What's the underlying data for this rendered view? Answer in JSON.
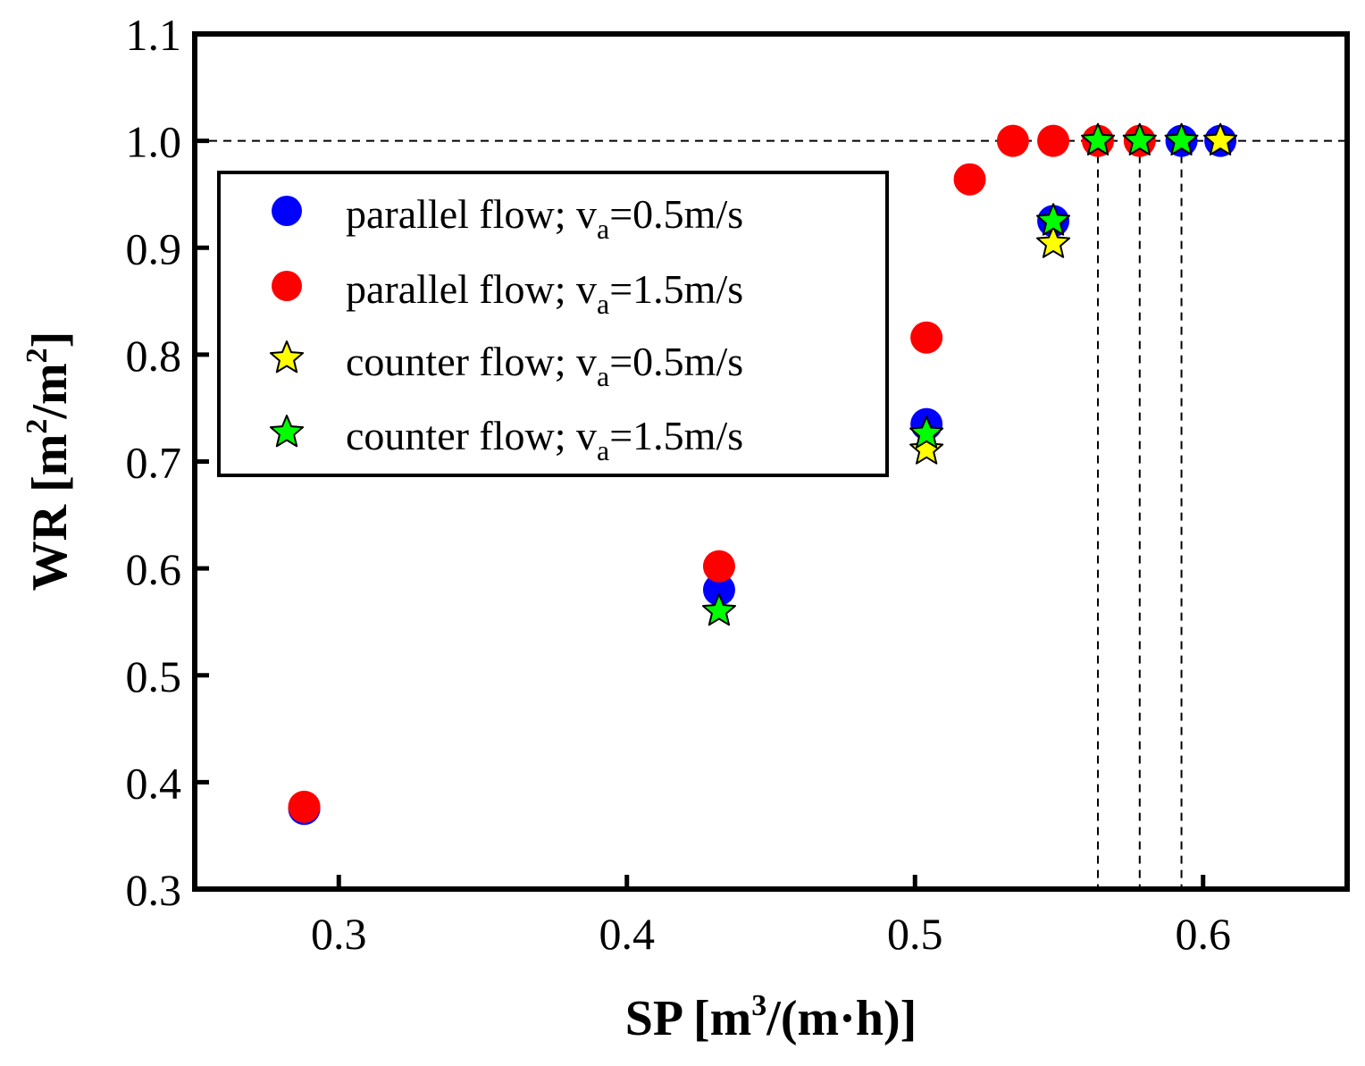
{
  "chart_data": {
    "type": "scatter",
    "title": "",
    "xlabel": "SP [m3/(m·h)]",
    "ylabel": "WR [m2/m2]",
    "xlim": [
      0.25,
      0.65
    ],
    "ylim": [
      0.3,
      1.1
    ],
    "x_ticks": [
      0.3,
      0.4,
      0.5,
      0.6
    ],
    "x_tick_labels": [
      "0.3",
      "0.4",
      "0.5",
      "0.6"
    ],
    "y_ticks": [
      0.3,
      0.4,
      0.5,
      0.6,
      0.7,
      0.8,
      0.9,
      1.0,
      1.1
    ],
    "y_tick_labels": [
      "0.3",
      "0.4",
      "0.5",
      "0.6",
      "0.7",
      "0.8",
      "0.9",
      "1.0",
      "1.1"
    ],
    "grid": false,
    "legend_position": "upper-left",
    "reference_lines": {
      "horizontal_y": 1.0,
      "vertical_x": [
        0.5635,
        0.578,
        0.5925
      ]
    },
    "series": [
      {
        "name": "parallel flow; va=0.5m/s",
        "marker": "circle",
        "color": "#0000ff",
        "x": [
          0.288,
          0.432,
          0.504,
          0.548,
          0.5925,
          0.606
        ],
        "y": [
          0.375,
          0.58,
          0.735,
          0.925,
          1.0,
          1.0
        ]
      },
      {
        "name": "parallel flow; va=1.5m/s",
        "marker": "circle",
        "color": "#ff0000",
        "x": [
          0.288,
          0.432,
          0.504,
          0.519,
          0.534,
          0.548,
          0.5635,
          0.578
        ],
        "y": [
          0.377,
          0.602,
          0.816,
          0.964,
          1.0,
          1.0,
          1.0,
          1.0
        ]
      },
      {
        "name": "counter flow; va=0.5m/s",
        "marker": "star",
        "color": "#ffff00",
        "x": [
          0.504,
          0.548,
          0.606
        ],
        "y": [
          0.711,
          0.904,
          1.0
        ]
      },
      {
        "name": "counter flow; va=1.5m/s",
        "marker": "star",
        "color": "#00ff00",
        "x": [
          0.432,
          0.504,
          0.548,
          0.5635,
          0.578,
          0.5925
        ],
        "y": [
          0.56,
          0.726,
          0.925,
          1.0,
          1.0,
          1.0
        ]
      }
    ]
  },
  "legend": {
    "items": [
      {
        "label_prefix": "parallel flow; v",
        "label_sub": "a",
        "label_suffix": "=0.5m/s"
      },
      {
        "label_prefix": "parallel flow; v",
        "label_sub": "a",
        "label_suffix": "=1.5m/s"
      },
      {
        "label_prefix": "counter flow; v",
        "label_sub": "a",
        "label_suffix": "=0.5m/s"
      },
      {
        "label_prefix": "counter flow; v",
        "label_sub": "a",
        "label_suffix": "=1.5m/s"
      }
    ]
  },
  "axis_titles": {
    "x": {
      "prefix": "SP [m",
      "sup": "3",
      "suffix": "/(m·h)]"
    },
    "y": {
      "prefix": "WR [m",
      "sup1": "2",
      "mid": "/m",
      "sup2": "2",
      "suffix": "]"
    }
  }
}
